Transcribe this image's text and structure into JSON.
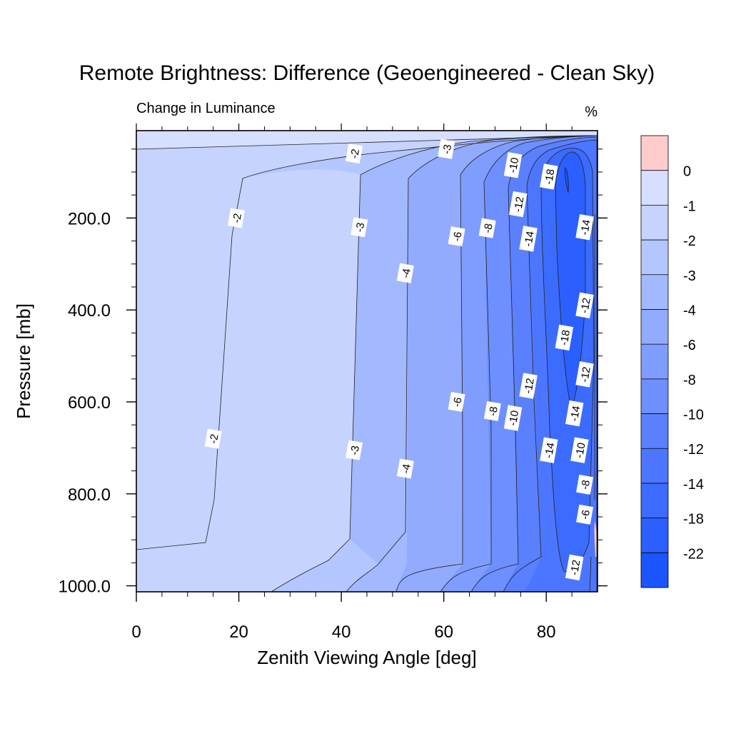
{
  "chart_data": {
    "type": "contour",
    "title": "Remote Brightness: Difference (Geoengineered - Clean Sky)",
    "subtitle_left": "Change in Luminance",
    "subtitle_right": "%",
    "xlabel": "Zenith Viewing Angle [deg]",
    "ylabel": "Pressure [mb]",
    "xlim": [
      0,
      90
    ],
    "ylim": [
      1013,
      10
    ],
    "y_reversed": true,
    "x_ticks": [
      0,
      20,
      40,
      60,
      80
    ],
    "x_tick_labels": [
      "0",
      "20",
      "40",
      "60",
      "80"
    ],
    "y_ticks": [
      200,
      400,
      600,
      800,
      1000
    ],
    "y_tick_labels": [
      "200.0",
      "400.0",
      "600.0",
      "800.0",
      "1000.0"
    ],
    "colorbar": {
      "labels": [
        "0",
        "-1",
        "-2",
        "-3",
        "-4",
        "-6",
        "-8",
        "-10",
        "-12",
        "-14",
        "-18",
        "-22"
      ],
      "colors": [
        "#ffcccc",
        "#d6dfff",
        "#c6d3ff",
        "#b4c6ff",
        "#a2b8ff",
        "#92abff",
        "#7f9dff",
        "#6d8fff",
        "#5a80ff",
        "#4c76ff",
        "#3c6bff",
        "#2b5fff",
        "#1a55ff"
      ]
    },
    "contour_levels": [
      -1,
      -2,
      -3,
      -4,
      -6,
      -8,
      -10,
      -12,
      -14,
      -18
    ],
    "contour_labels": [
      {
        "text": "-2",
        "x": 42.5,
        "y": 60
      },
      {
        "text": "-3",
        "x": 60.5,
        "y": 50
      },
      {
        "text": "-10",
        "x": 73.5,
        "y": 85
      },
      {
        "text": "-18",
        "x": 80.5,
        "y": 110
      },
      {
        "text": "-12",
        "x": 74.5,
        "y": 170
      },
      {
        "text": "-2",
        "x": 19.5,
        "y": 200
      },
      {
        "text": "-3",
        "x": 43.5,
        "y": 220
      },
      {
        "text": "-6",
        "x": 62.5,
        "y": 240
      },
      {
        "text": "-8",
        "x": 68.5,
        "y": 222
      },
      {
        "text": "-14",
        "x": 76.5,
        "y": 245
      },
      {
        "text": "-14",
        "x": 87.5,
        "y": 220
      },
      {
        "text": "-4",
        "x": 52.5,
        "y": 320
      },
      {
        "text": "-12",
        "x": 87.5,
        "y": 390
      },
      {
        "text": "-18",
        "x": 83.5,
        "y": 460
      },
      {
        "text": "-12",
        "x": 87.5,
        "y": 540
      },
      {
        "text": "-12",
        "x": 76.5,
        "y": 565
      },
      {
        "text": "-6",
        "x": 62.5,
        "y": 600
      },
      {
        "text": "-8",
        "x": 69.5,
        "y": 620
      },
      {
        "text": "-10",
        "x": 73.5,
        "y": 635
      },
      {
        "text": "-14",
        "x": 85.5,
        "y": 625
      },
      {
        "text": "-2",
        "x": 15,
        "y": 680
      },
      {
        "text": "-3",
        "x": 42.5,
        "y": 705
      },
      {
        "text": "-14",
        "x": 80.5,
        "y": 705
      },
      {
        "text": "-10",
        "x": 86.5,
        "y": 705
      },
      {
        "text": "-4",
        "x": 52.5,
        "y": 745
      },
      {
        "text": "-8",
        "x": 87.5,
        "y": 780
      },
      {
        "text": "-6",
        "x": 87.5,
        "y": 845
      },
      {
        "text": "-12",
        "x": 85.5,
        "y": 960
      }
    ]
  }
}
